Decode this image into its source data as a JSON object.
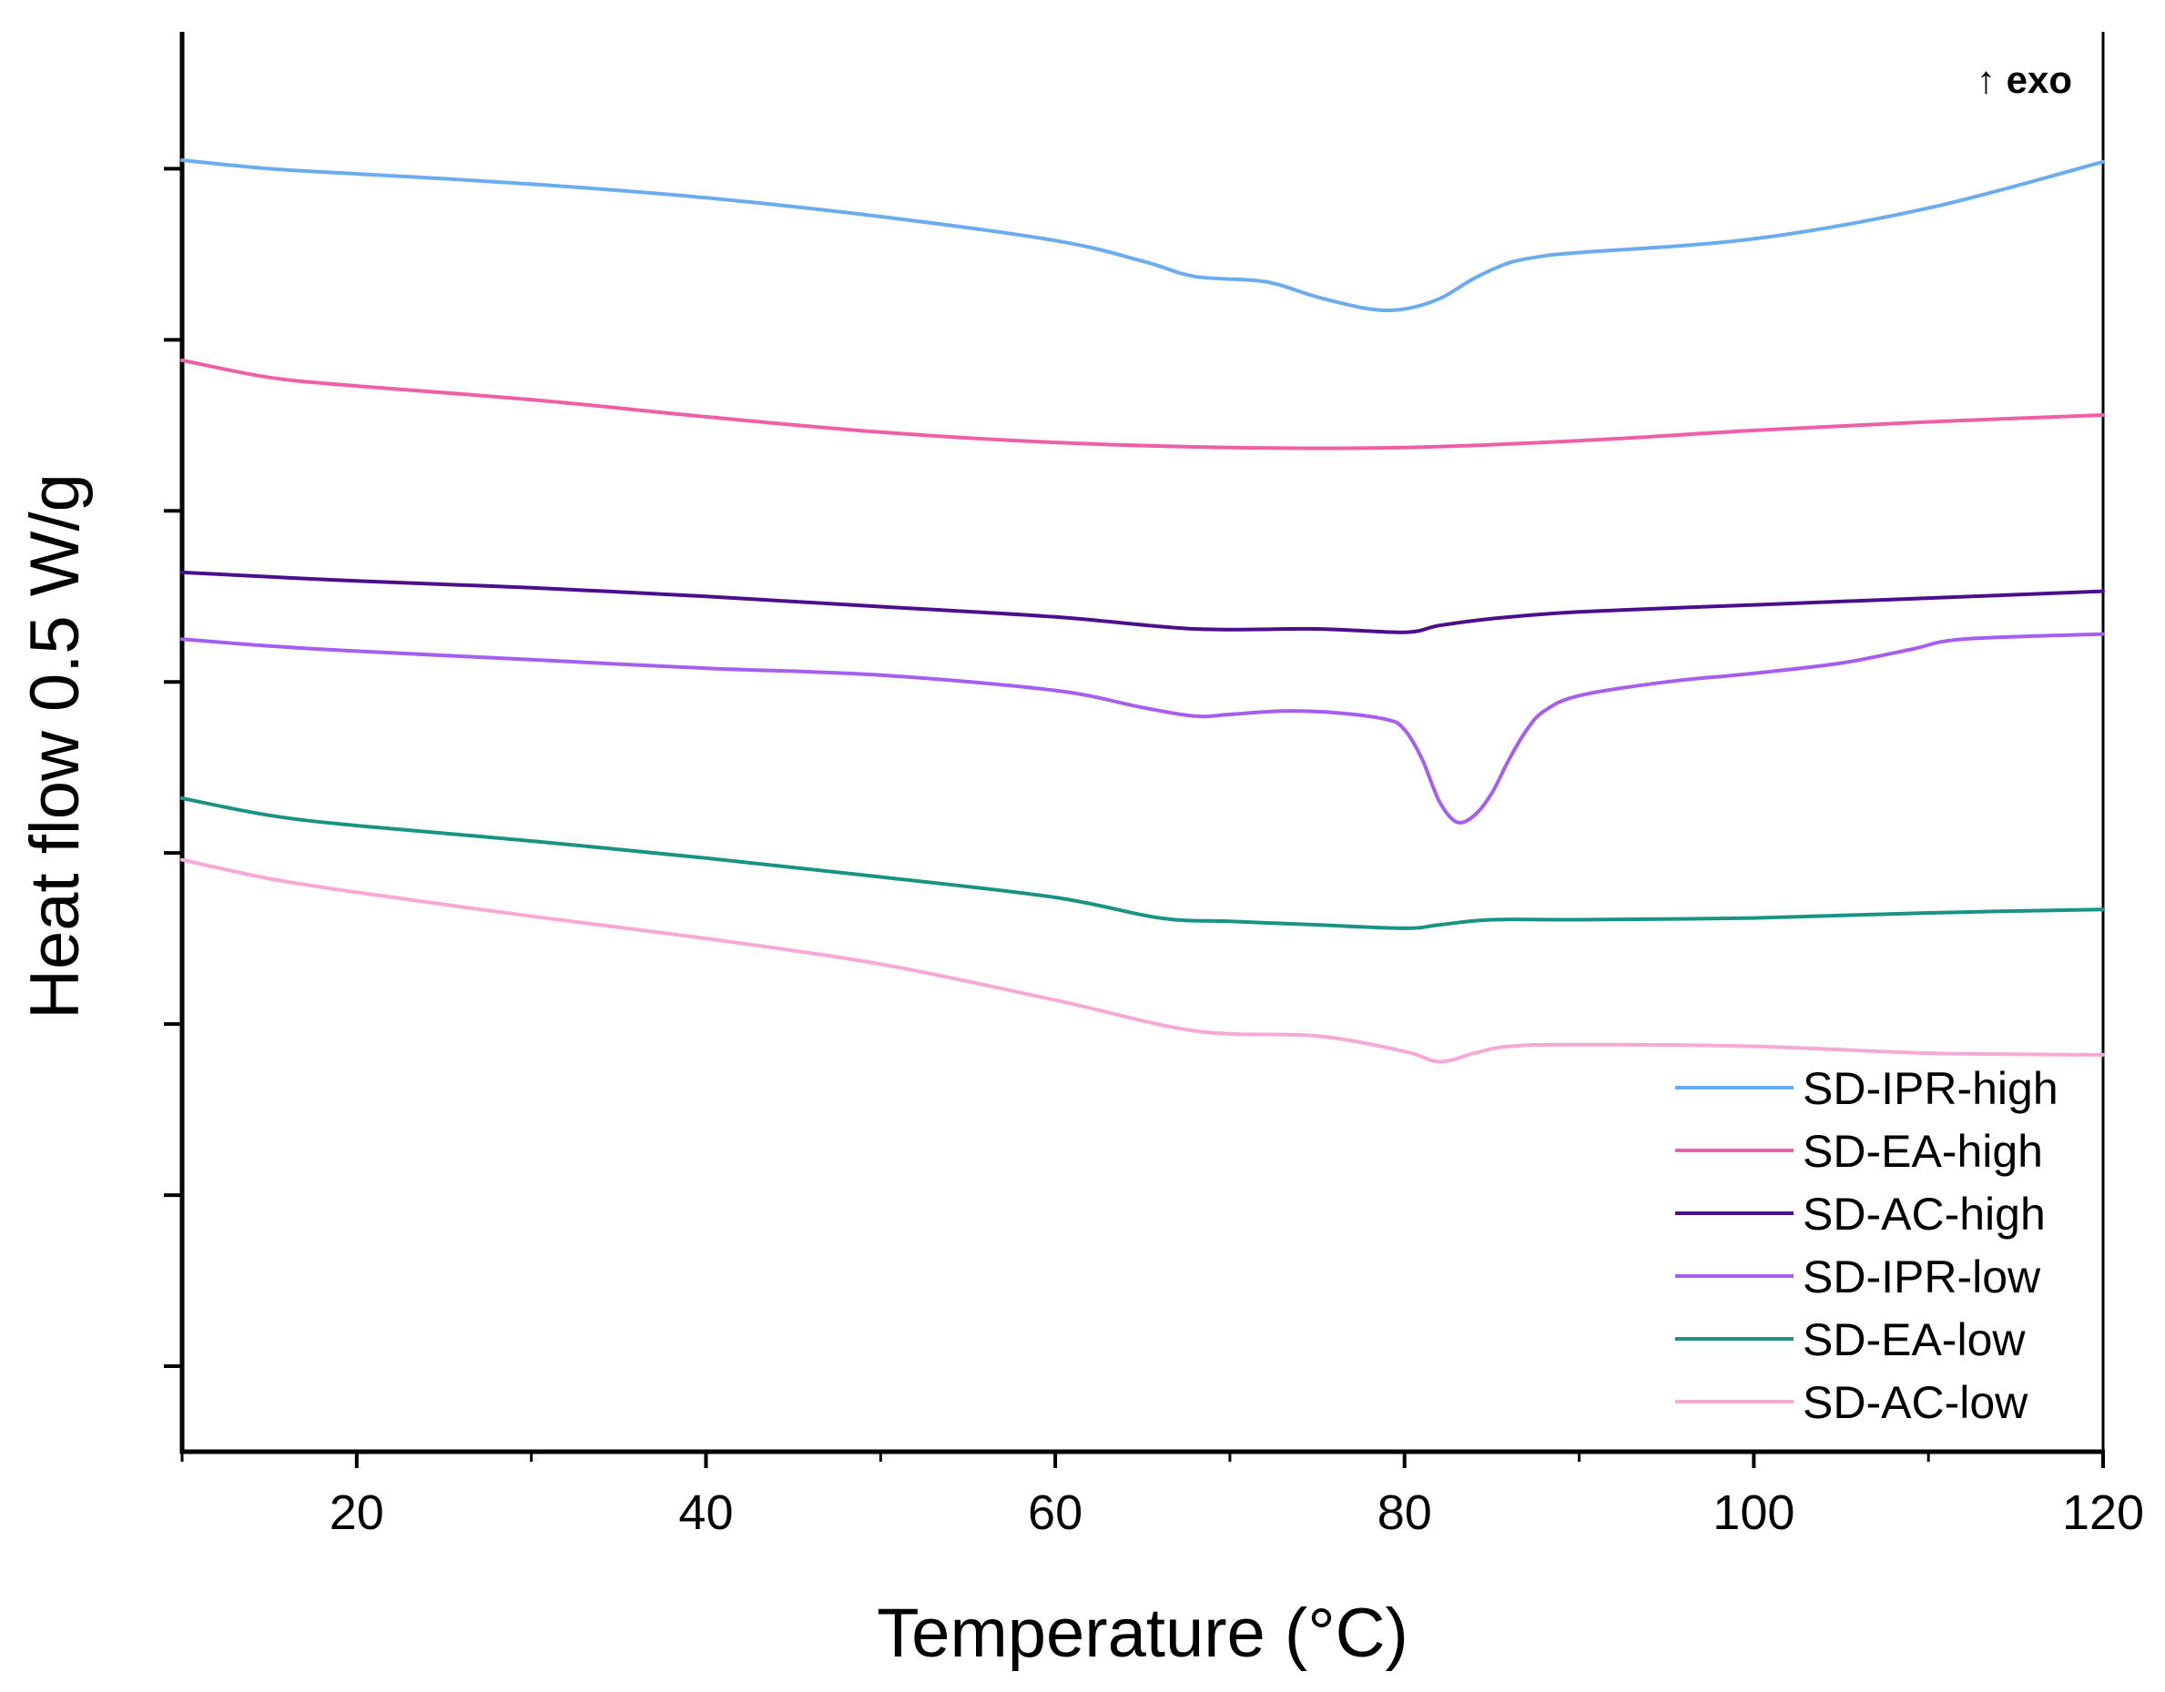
{
  "chart_data": {
    "type": "line",
    "title": "",
    "xlabel": "Temperature (°C)",
    "ylabel": "Heat flow 0.5 W/g",
    "annotation": "↑ exo",
    "xlim": [
      10,
      120
    ],
    "ylim": [
      0,
      8.3
    ],
    "x_ticks": [
      20,
      40,
      60,
      80,
      100,
      120
    ],
    "x_tick_labels": [
      "20",
      "40",
      "60",
      "80",
      "100",
      "120"
    ],
    "x_minor_ticks": [
      10,
      30,
      50,
      70,
      90,
      110
    ],
    "y_ticks": [
      0.5,
      1.5,
      2.5,
      3.5,
      4.5,
      5.5,
      6.5,
      7.5
    ],
    "y_tick_labels_visible": false,
    "legend_position": "bottom-right",
    "series": [
      {
        "name": "SD-IPR-high",
        "color": "#6aacf0",
        "points": [
          [
            10,
            7.55
          ],
          [
            15,
            7.5
          ],
          [
            20,
            7.47
          ],
          [
            30,
            7.41
          ],
          [
            40,
            7.33
          ],
          [
            50,
            7.22
          ],
          [
            60,
            7.08
          ],
          [
            65,
            6.96
          ],
          [
            68,
            6.87
          ],
          [
            72,
            6.84
          ],
          [
            75,
            6.75
          ],
          [
            78,
            6.68
          ],
          [
            80,
            6.68
          ],
          [
            82,
            6.74
          ],
          [
            84,
            6.86
          ],
          [
            86,
            6.95
          ],
          [
            88,
            6.99
          ],
          [
            90,
            7.01
          ],
          [
            100,
            7.09
          ],
          [
            110,
            7.27
          ],
          [
            120,
            7.54
          ]
        ]
      },
      {
        "name": "SD-EA-high",
        "color": "#ef5fa8",
        "points": [
          [
            10,
            6.38
          ],
          [
            15,
            6.28
          ],
          [
            20,
            6.23
          ],
          [
            30,
            6.15
          ],
          [
            40,
            6.05
          ],
          [
            50,
            5.96
          ],
          [
            60,
            5.9
          ],
          [
            70,
            5.87
          ],
          [
            80,
            5.87
          ],
          [
            90,
            5.91
          ],
          [
            100,
            5.97
          ],
          [
            110,
            6.02
          ],
          [
            120,
            6.06
          ]
        ]
      },
      {
        "name": "SD-AC-high",
        "color": "#4b0e8c",
        "points": [
          [
            10,
            5.14
          ],
          [
            20,
            5.09
          ],
          [
            30,
            5.05
          ],
          [
            40,
            5.0
          ],
          [
            50,
            4.94
          ],
          [
            60,
            4.88
          ],
          [
            68,
            4.81
          ],
          [
            75,
            4.81
          ],
          [
            80,
            4.79
          ],
          [
            82,
            4.83
          ],
          [
            85,
            4.87
          ],
          [
            90,
            4.91
          ],
          [
            100,
            4.95
          ],
          [
            110,
            4.99
          ],
          [
            120,
            5.03
          ]
        ]
      },
      {
        "name": "SD-IPR-low",
        "color": "#a55ef0",
        "points": [
          [
            10,
            4.75
          ],
          [
            15,
            4.71
          ],
          [
            20,
            4.68
          ],
          [
            30,
            4.63
          ],
          [
            40,
            4.58
          ],
          [
            50,
            4.54
          ],
          [
            60,
            4.45
          ],
          [
            65,
            4.35
          ],
          [
            68,
            4.3
          ],
          [
            70,
            4.31
          ],
          [
            73,
            4.33
          ],
          [
            76,
            4.32
          ],
          [
            79,
            4.28
          ],
          [
            80,
            4.22
          ],
          [
            81,
            4.05
          ],
          [
            82,
            3.8
          ],
          [
            83,
            3.68
          ],
          [
            84,
            3.72
          ],
          [
            85,
            3.85
          ],
          [
            86,
            4.05
          ],
          [
            87,
            4.22
          ],
          [
            88,
            4.33
          ],
          [
            90,
            4.42
          ],
          [
            95,
            4.5
          ],
          [
            100,
            4.55
          ],
          [
            105,
            4.61
          ],
          [
            109,
            4.69
          ],
          [
            112,
            4.75
          ],
          [
            120,
            4.78
          ]
        ]
      },
      {
        "name": "SD-EA-low",
        "color": "#199384",
        "points": [
          [
            10,
            3.82
          ],
          [
            15,
            3.72
          ],
          [
            20,
            3.66
          ],
          [
            30,
            3.57
          ],
          [
            40,
            3.47
          ],
          [
            50,
            3.36
          ],
          [
            60,
            3.24
          ],
          [
            66,
            3.12
          ],
          [
            70,
            3.1
          ],
          [
            75,
            3.08
          ],
          [
            80,
            3.06
          ],
          [
            82,
            3.08
          ],
          [
            85,
            3.11
          ],
          [
            90,
            3.11
          ],
          [
            100,
            3.12
          ],
          [
            110,
            3.15
          ],
          [
            120,
            3.17
          ]
        ]
      },
      {
        "name": "SD-AC-low",
        "color": "#f7a8d4",
        "points": [
          [
            10,
            3.46
          ],
          [
            15,
            3.35
          ],
          [
            20,
            3.27
          ],
          [
            30,
            3.13
          ],
          [
            40,
            3.0
          ],
          [
            50,
            2.85
          ],
          [
            60,
            2.64
          ],
          [
            68,
            2.46
          ],
          [
            75,
            2.43
          ],
          [
            80,
            2.34
          ],
          [
            82,
            2.28
          ],
          [
            84,
            2.33
          ],
          [
            86,
            2.37
          ],
          [
            90,
            2.38
          ],
          [
            100,
            2.37
          ],
          [
            110,
            2.33
          ],
          [
            120,
            2.32
          ]
        ]
      }
    ]
  }
}
